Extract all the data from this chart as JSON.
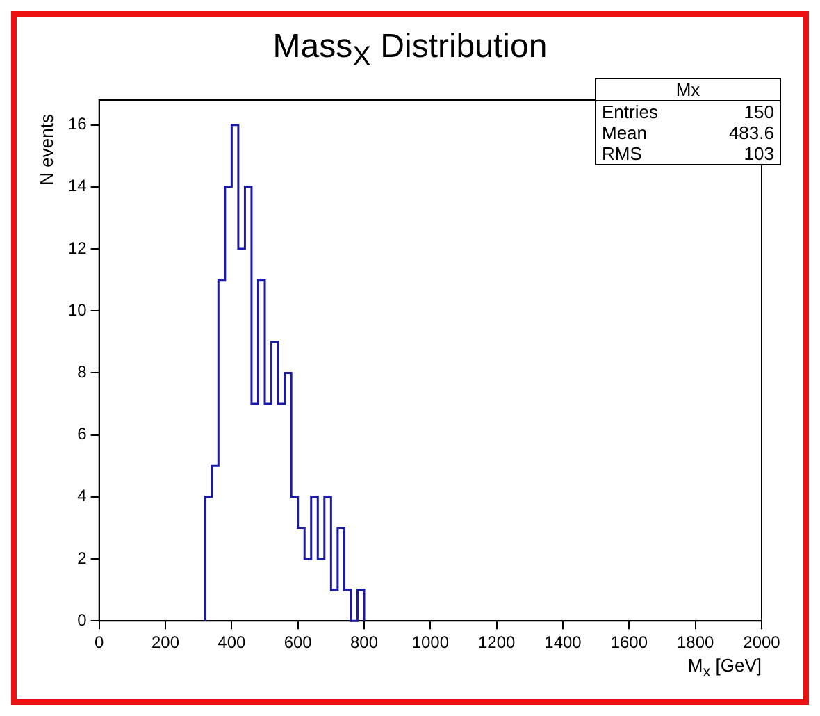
{
  "chart_data": {
    "type": "histogram",
    "title": "Mass$_{X}$ Distribution",
    "xlabel": "M$_{x}$  [GeV]",
    "ylabel": "N events",
    "bins": [
      320,
      340,
      360,
      380,
      400,
      420,
      440,
      460,
      480,
      500,
      520,
      540,
      560,
      580,
      600,
      620,
      640,
      660,
      680,
      700,
      720,
      740,
      760,
      780,
      800
    ],
    "values": [
      4,
      5,
      11,
      14,
      16,
      12,
      14,
      7,
      11,
      7,
      9,
      7,
      8,
      4,
      3,
      2,
      4,
      2,
      4,
      1,
      3,
      1,
      0,
      1
    ],
    "color": "#1a1aa6",
    "xlim": [
      0,
      2000
    ],
    "xticks": [
      0,
      200,
      400,
      600,
      800,
      1000,
      1200,
      1400,
      1600,
      1800,
      2000
    ],
    "ylim": [
      0,
      16.8
    ],
    "yticks": [
      0,
      2,
      4,
      6,
      8,
      10,
      12,
      14,
      16
    ],
    "grid": false,
    "legend": false,
    "annotations": [
      "Mx",
      "Entries 150",
      "Mean 483.6",
      "RMS 103"
    ]
  }
}
